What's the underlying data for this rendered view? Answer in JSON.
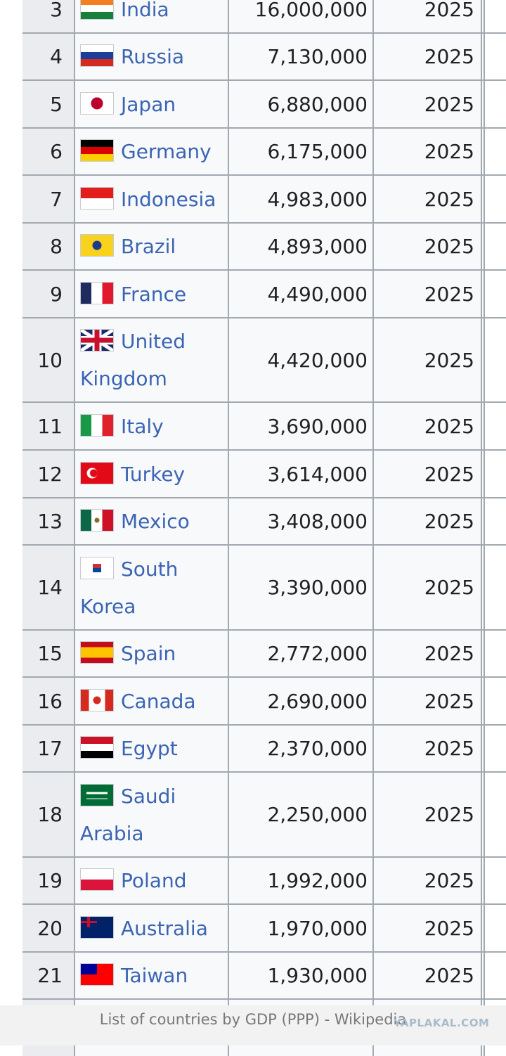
{
  "table": {
    "rows": [
      {
        "rank": "3",
        "country": "India",
        "value": "16,000,000",
        "year": "2025",
        "flag": "india-flag-icon"
      },
      {
        "rank": "4",
        "country": "Russia",
        "value": "7,130,000",
        "year": "2025",
        "flag": "russia-flag-icon"
      },
      {
        "rank": "5",
        "country": "Japan",
        "value": "6,880,000",
        "year": "2025",
        "flag": "japan-flag-icon"
      },
      {
        "rank": "6",
        "country": "Germany",
        "value": "6,175,000",
        "year": "2025",
        "flag": "germany-flag-icon"
      },
      {
        "rank": "7",
        "country": "Indonesia",
        "value": "4,983,000",
        "year": "2025",
        "flag": "indonesia-flag-icon"
      },
      {
        "rank": "8",
        "country": "Brazil",
        "value": "4,893,000",
        "year": "2025",
        "flag": "brazil-flag-icon"
      },
      {
        "rank": "9",
        "country": "France",
        "value": "4,490,000",
        "year": "2025",
        "flag": "france-flag-icon"
      },
      {
        "rank": "10",
        "country": "United Kingdom",
        "value": "4,420,000",
        "year": "2025",
        "flag": "uk-flag-icon"
      },
      {
        "rank": "11",
        "country": "Italy",
        "value": "3,690,000",
        "year": "2025",
        "flag": "italy-flag-icon"
      },
      {
        "rank": "12",
        "country": "Turkey",
        "value": "3,614,000",
        "year": "2025",
        "flag": "turkey-flag-icon"
      },
      {
        "rank": "13",
        "country": "Mexico",
        "value": "3,408,000",
        "year": "2025",
        "flag": "mexico-flag-icon"
      },
      {
        "rank": "14",
        "country": "South Korea",
        "value": "3,390,000",
        "year": "2025",
        "flag": "south-korea-flag-icon"
      },
      {
        "rank": "15",
        "country": "Spain",
        "value": "2,772,000",
        "year": "2025",
        "flag": "spain-flag-icon"
      },
      {
        "rank": "16",
        "country": "Canada",
        "value": "2,690,000",
        "year": "2025",
        "flag": "canada-flag-icon"
      },
      {
        "rank": "17",
        "country": "Egypt",
        "value": "2,370,000",
        "year": "2025",
        "flag": "egypt-flag-icon"
      },
      {
        "rank": "18",
        "country": "Saudi Arabia",
        "value": "2,250,000",
        "year": "2025",
        "flag": "saudi-arabia-flag-icon"
      },
      {
        "rank": "19",
        "country": "Poland",
        "value": "1,992,000",
        "year": "2025",
        "flag": "poland-flag-icon"
      },
      {
        "rank": "20",
        "country": "Australia",
        "value": "1,970,000",
        "year": "2025",
        "flag": "australia-flag-icon"
      },
      {
        "rank": "21",
        "country": "Taiwan",
        "value": "1,930,000",
        "year": "2025",
        "flag": "taiwan-flag-icon"
      }
    ]
  },
  "footer": {
    "title": "List of countries by GDP (PPP) - Wikipedia",
    "watermark": "YAPLAKAL.COM"
  },
  "colors": {
    "link": "#3a64b4",
    "rank_bg": "#eaecf0",
    "cell_bg": "#f8f9fa",
    "border": "#a2a9b1"
  }
}
